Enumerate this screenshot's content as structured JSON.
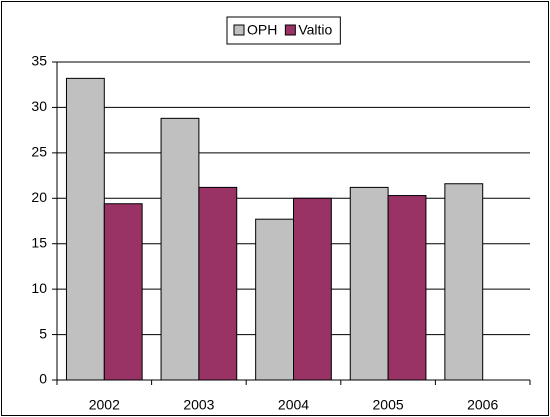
{
  "chart_data": {
    "type": "bar",
    "categories": [
      "2002",
      "2003",
      "2004",
      "2005",
      "2006"
    ],
    "series": [
      {
        "name": "OPH",
        "color": "#c0c0c0",
        "values": [
          33.2,
          28.8,
          17.7,
          21.2,
          21.6
        ]
      },
      {
        "name": "Valtio",
        "color": "#993366",
        "values": [
          19.4,
          21.2,
          20.0,
          20.3,
          null
        ]
      }
    ],
    "ylim": [
      0,
      35
    ],
    "yticks": [
      0,
      5,
      10,
      15,
      20,
      25,
      30,
      35
    ],
    "grid": true,
    "legend": "top"
  }
}
